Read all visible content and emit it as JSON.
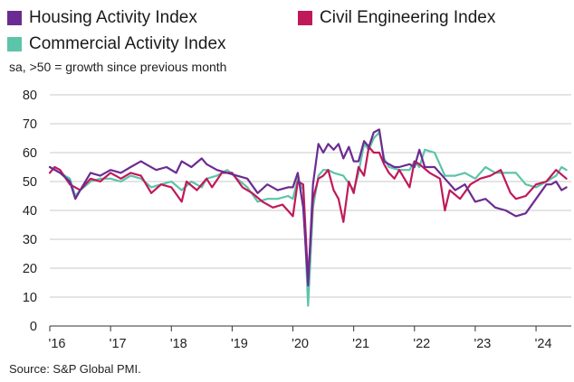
{
  "chart_data": {
    "type": "line",
    "subtitle": "sa, >50 = growth since previous month",
    "source": "Source: S&P Global PMI.",
    "ylim": [
      0,
      80
    ],
    "yticks": [
      0,
      10,
      20,
      30,
      40,
      50,
      60,
      70,
      80
    ],
    "x_range": [
      2016.0,
      2024.58
    ],
    "xticks": [
      {
        "label": "'16",
        "x": 2016
      },
      {
        "label": "'17",
        "x": 2017
      },
      {
        "label": "'18",
        "x": 2018
      },
      {
        "label": "'19",
        "x": 2019
      },
      {
        "label": "'20",
        "x": 2020
      },
      {
        "label": "'21",
        "x": 2021
      },
      {
        "label": "'22",
        "x": 2022
      },
      {
        "label": "'23",
        "x": 2023
      },
      {
        "label": "'24",
        "x": 2024
      }
    ],
    "legend": [
      {
        "name": "Housing Activity Index",
        "color": "#6b2c91"
      },
      {
        "name": "Civil Engineering Index",
        "color": "#c0195a"
      },
      {
        "name": "Commercial Activity Index",
        "color": "#5cc4a8"
      }
    ],
    "series": [
      {
        "name": "Housing Activity Index",
        "color": "#6b2c91",
        "x": [
          2016.0,
          2016.17,
          2016.33,
          2016.42,
          2016.5,
          2016.67,
          2016.83,
          2017.0,
          2017.17,
          2017.33,
          2017.5,
          2017.58,
          2017.75,
          2017.92,
          2018.08,
          2018.17,
          2018.33,
          2018.5,
          2018.58,
          2018.75,
          2018.92,
          2019.08,
          2019.25,
          2019.42,
          2019.58,
          2019.75,
          2019.92,
          2020.0,
          2020.08,
          2020.17,
          2020.25,
          2020.33,
          2020.42,
          2020.5,
          2020.58,
          2020.67,
          2020.75,
          2020.83,
          2020.92,
          2021.0,
          2021.08,
          2021.17,
          2021.25,
          2021.33,
          2021.42,
          2021.5,
          2021.58,
          2021.67,
          2021.75,
          2021.92,
          2022.0,
          2022.08,
          2022.17,
          2022.33,
          2022.5,
          2022.67,
          2022.83,
          2023.0,
          2023.17,
          2023.33,
          2023.5,
          2023.67,
          2023.83,
          2024.0,
          2024.17,
          2024.25,
          2024.33,
          2024.42,
          2024.5
        ],
        "values": [
          55,
          53,
          50,
          44,
          47,
          53,
          52,
          54,
          53,
          55,
          57,
          56,
          54,
          55,
          53,
          57,
          55,
          58,
          56,
          54,
          53,
          52,
          51,
          46,
          49,
          47,
          48,
          48,
          53,
          41,
          14,
          49,
          63,
          60,
          63,
          61,
          63,
          58,
          62,
          57,
          57,
          64,
          62,
          67,
          68,
          57,
          56,
          55,
          55,
          56,
          55,
          61,
          55,
          55,
          51,
          47,
          49,
          43,
          44,
          41,
          40,
          38,
          39,
          44,
          49,
          49,
          50,
          47,
          48
        ]
      },
      {
        "name": "Civil Engineering Index",
        "color": "#c0195a",
        "x": [
          2016.0,
          2016.08,
          2016.17,
          2016.33,
          2016.5,
          2016.67,
          2016.83,
          2017.0,
          2017.17,
          2017.33,
          2017.5,
          2017.67,
          2017.83,
          2018.0,
          2018.17,
          2018.25,
          2018.42,
          2018.58,
          2018.67,
          2018.83,
          2019.0,
          2019.17,
          2019.33,
          2019.5,
          2019.67,
          2019.83,
          2020.0,
          2020.08,
          2020.17,
          2020.25,
          2020.33,
          2020.42,
          2020.5,
          2020.58,
          2020.67,
          2020.75,
          2020.83,
          2020.92,
          2021.0,
          2021.08,
          2021.17,
          2021.25,
          2021.33,
          2021.42,
          2021.5,
          2021.58,
          2021.67,
          2021.75,
          2021.92,
          2022.0,
          2022.08,
          2022.25,
          2022.42,
          2022.5,
          2022.58,
          2022.75,
          2022.92,
          2023.08,
          2023.25,
          2023.42,
          2023.58,
          2023.67,
          2023.83,
          2024.0,
          2024.17,
          2024.33,
          2024.5
        ],
        "values": [
          53,
          55,
          54,
          49,
          47,
          51,
          50,
          53,
          51,
          53,
          52,
          46,
          49,
          48,
          43,
          50,
          47,
          51,
          48,
          53,
          53,
          48,
          46,
          43,
          41,
          42,
          38,
          50,
          49,
          16,
          44,
          51,
          52,
          54,
          47,
          44,
          36,
          50,
          46,
          55,
          52,
          62,
          60,
          60,
          56,
          53,
          51,
          54,
          48,
          57,
          56,
          53,
          51,
          40,
          47,
          44,
          49,
          51,
          52,
          54,
          46,
          44,
          45,
          49,
          50,
          54,
          51
        ]
      },
      {
        "name": "Commercial Activity Index",
        "color": "#5cc4a8",
        "x": [
          2016.0,
          2016.17,
          2016.33,
          2016.42,
          2016.5,
          2016.67,
          2016.83,
          2017.0,
          2017.17,
          2017.33,
          2017.5,
          2017.67,
          2017.83,
          2018.0,
          2018.17,
          2018.33,
          2018.5,
          2018.58,
          2018.75,
          2018.92,
          2019.08,
          2019.25,
          2019.42,
          2019.58,
          2019.75,
          2019.92,
          2020.0,
          2020.08,
          2020.17,
          2020.25,
          2020.33,
          2020.42,
          2020.5,
          2020.58,
          2020.67,
          2020.83,
          2021.0,
          2021.08,
          2021.17,
          2021.25,
          2021.33,
          2021.42,
          2021.5,
          2021.58,
          2021.75,
          2021.92,
          2022.0,
          2022.08,
          2022.17,
          2022.33,
          2022.5,
          2022.67,
          2022.83,
          2023.0,
          2023.17,
          2023.33,
          2023.5,
          2023.67,
          2023.83,
          2024.0,
          2024.17,
          2024.33,
          2024.42,
          2024.5
        ],
        "values": [
          55,
          53,
          51,
          45,
          47,
          50,
          51,
          51,
          50,
          52,
          51,
          48,
          49,
          50,
          47,
          50,
          48,
          51,
          52,
          54,
          51,
          48,
          43,
          44,
          44,
          45,
          44,
          51,
          47,
          7,
          41,
          52,
          54,
          54,
          53,
          52,
          47,
          53,
          63,
          61,
          65,
          67,
          58,
          55,
          54,
          54,
          57,
          55,
          61,
          60,
          52,
          52,
          53,
          51,
          55,
          53,
          53,
          53,
          49,
          48,
          50,
          52,
          55,
          54
        ]
      }
    ]
  }
}
